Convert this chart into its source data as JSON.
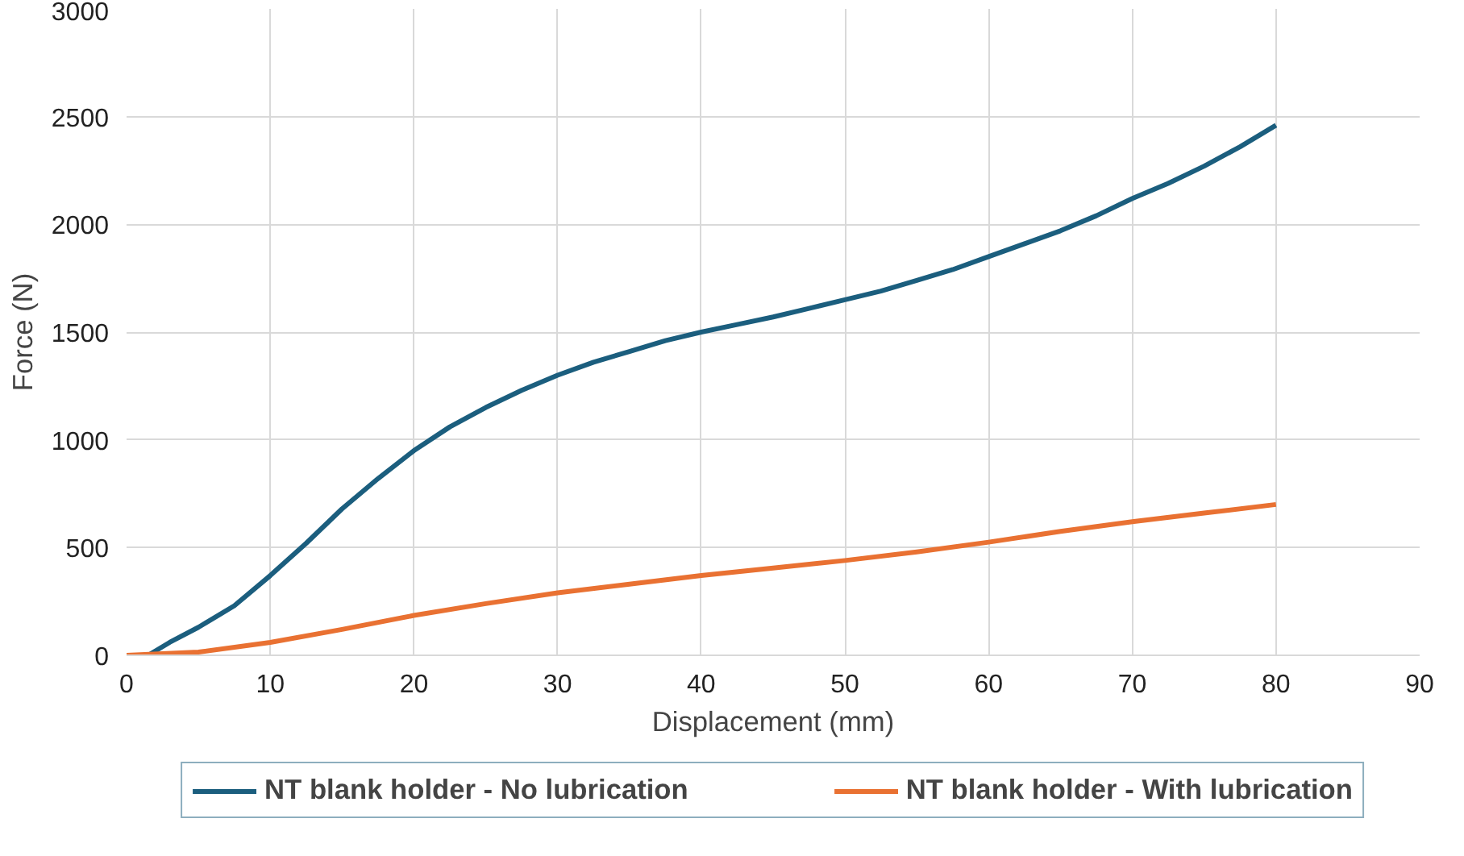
{
  "chart_data": {
    "type": "line",
    "xlabel": "Displacement (mm)",
    "ylabel": "Force (N)",
    "xlim": [
      0,
      90
    ],
    "ylim": [
      0,
      3000
    ],
    "xticks": [
      0,
      10,
      20,
      30,
      40,
      50,
      60,
      70,
      80,
      90
    ],
    "yticks": [
      0,
      500,
      1000,
      1500,
      2000,
      2500,
      3000
    ],
    "grid": true,
    "legend": "bottom",
    "line_style": "solid",
    "marker": "none",
    "series": [
      {
        "name": "NT blank holder - No lubrication",
        "color": "#1b5e7e",
        "x": [
          0,
          1.5,
          3,
          5,
          7.5,
          10,
          12.5,
          15,
          17.5,
          20,
          22.5,
          25,
          27.5,
          30,
          32.5,
          35,
          37.5,
          40,
          42.5,
          45,
          47.5,
          50,
          52.5,
          55,
          57.5,
          60,
          62.5,
          65,
          67.5,
          70,
          72.5,
          75,
          77.5,
          80
        ],
        "values": [
          0,
          0,
          60,
          130,
          230,
          370,
          520,
          680,
          820,
          950,
          1060,
          1150,
          1230,
          1300,
          1360,
          1410,
          1460,
          1500,
          1535,
          1570,
          1610,
          1650,
          1690,
          1740,
          1790,
          1850,
          1910,
          1970,
          2040,
          2120,
          2190,
          2270,
          2360,
          2460
        ]
      },
      {
        "name": "NT blank holder - With lubrication",
        "color": "#e97132",
        "x": [
          0,
          5,
          10,
          15,
          20,
          25,
          30,
          35,
          40,
          45,
          50,
          55,
          60,
          65,
          70,
          75,
          80
        ],
        "values": [
          0,
          15,
          60,
          120,
          185,
          240,
          290,
          330,
          370,
          405,
          440,
          480,
          525,
          575,
          620,
          660,
          700
        ]
      }
    ]
  }
}
